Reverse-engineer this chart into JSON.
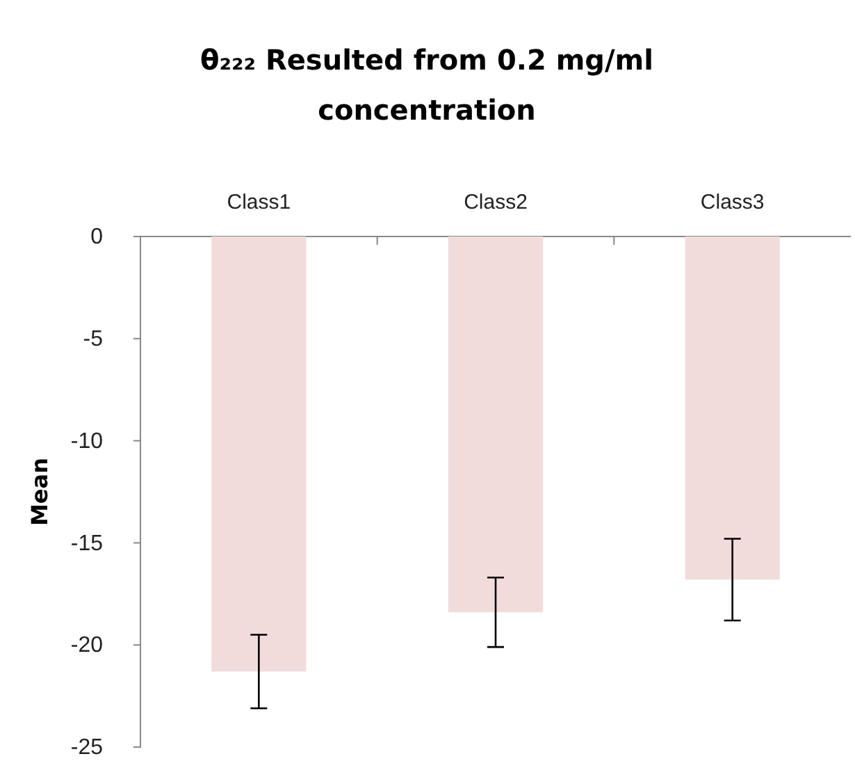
{
  "chart_data": {
    "type": "bar",
    "title": "θ₂₂₂ Resulted from 0.2 mg/ml concentration",
    "ylabel": "Mean",
    "categories": [
      "Class1",
      "Class2",
      "Class3"
    ],
    "values": [
      -21.3,
      -18.4,
      -16.8
    ],
    "errors": [
      1.8,
      1.7,
      2.0
    ],
    "color": "#f2dcdb",
    "ylim": [
      -25,
      0
    ],
    "yticks": [
      -25,
      -20,
      -15,
      -10,
      -5,
      0
    ],
    "grid": false
  }
}
